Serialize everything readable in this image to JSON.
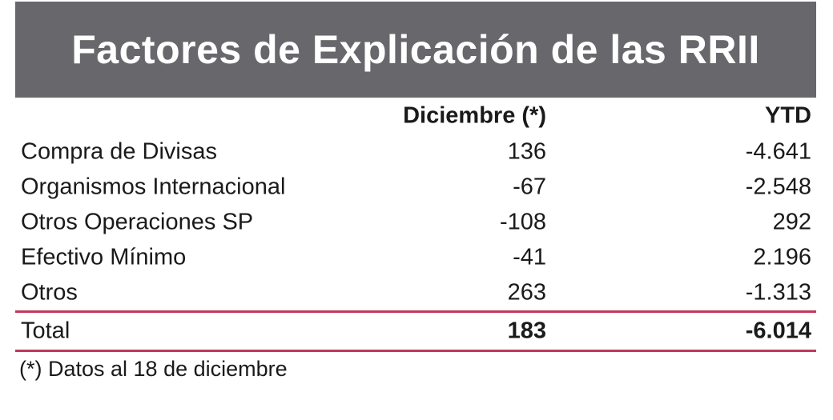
{
  "title": "Factores de Explicación de las RRII",
  "columns": {
    "col1": "Diciembre (*)",
    "col2": "YTD"
  },
  "rows": [
    {
      "label": "Compra de Divisas",
      "col1": "136",
      "col2": "-4.641"
    },
    {
      "label": "Organismos Internacional",
      "col1": "-67",
      "col2": "-2.548"
    },
    {
      "label": "Otros Operaciones SP",
      "col1": "-108",
      "col2": "292"
    },
    {
      "label": "Efectivo Mínimo",
      "col1": "-41",
      "col2": "2.196"
    },
    {
      "label": "Otros",
      "col1": "263",
      "col2": "-1.313"
    }
  ],
  "total": {
    "label": "Total",
    "col1": "183",
    "col2": "-6.014"
  },
  "footnote": "(*) Datos al 18 de diciembre",
  "colors": {
    "title_bg": "#68676c",
    "divider": "#c0395c"
  }
}
